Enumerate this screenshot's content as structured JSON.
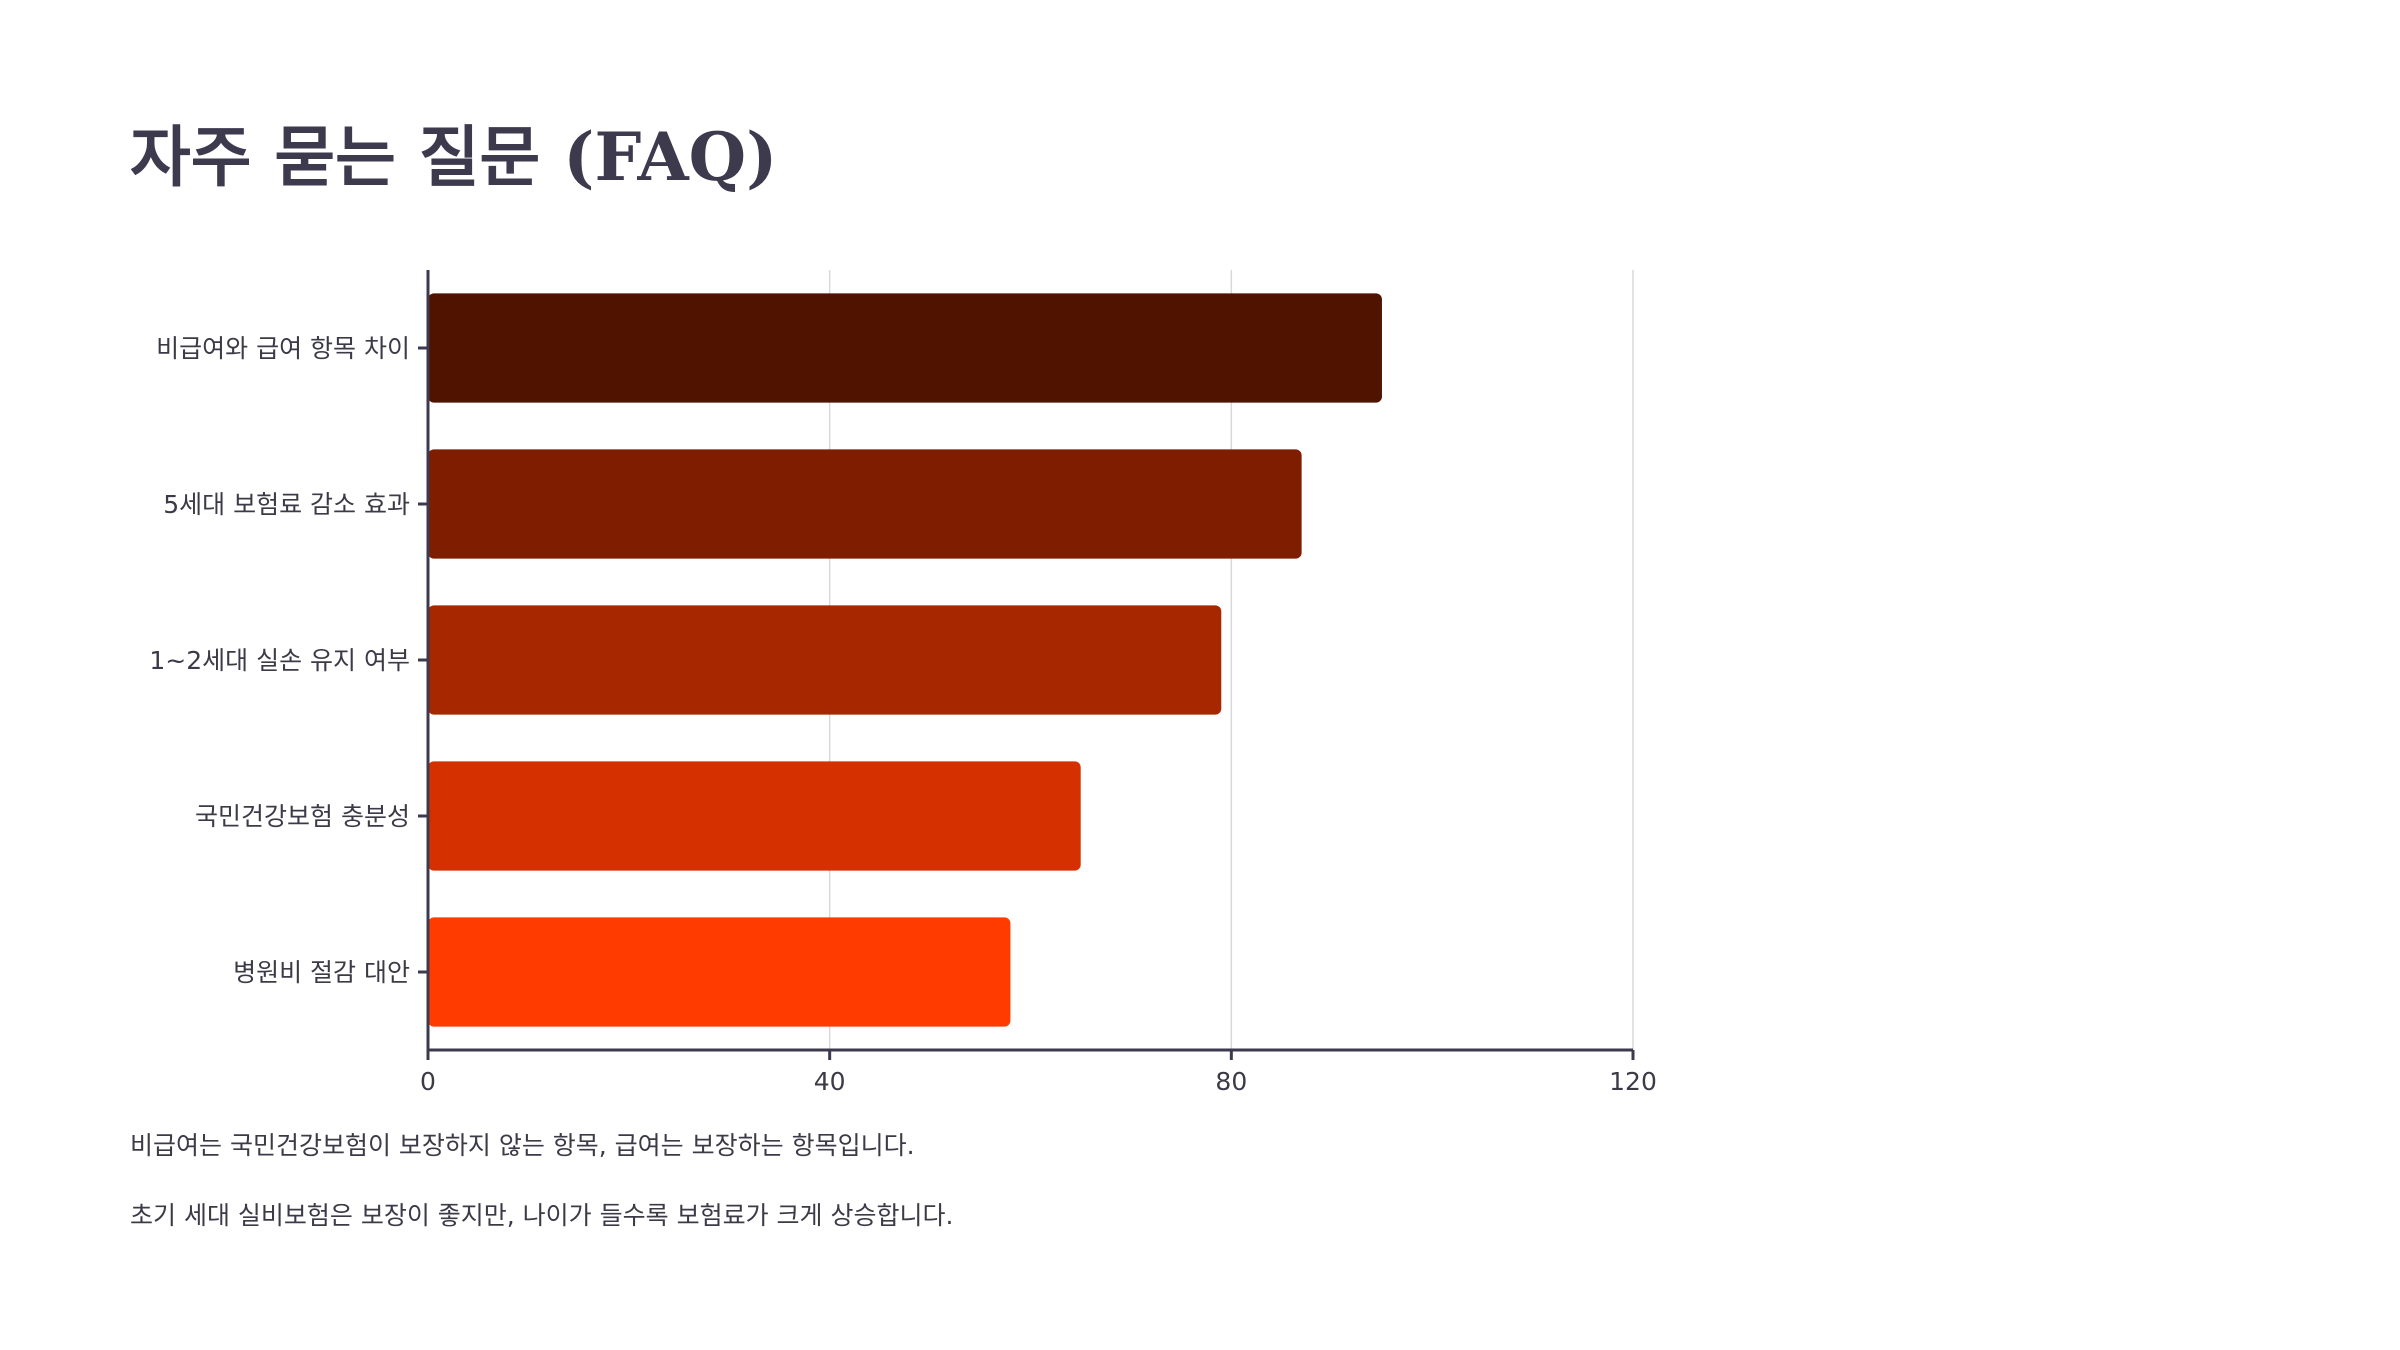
{
  "page": {
    "title": "자주 묻는 질문 (FAQ)"
  },
  "notes": [
    "비급여는 국민건강보험이 보장하지 않는 항목, 급여는 보장하는 항목입니다.",
    "초기 세대 실비보험은 보장이 좋지만, 나이가 들수록 보험료가 크게 상승합니다."
  ],
  "chart_data": {
    "type": "bar",
    "orientation": "horizontal",
    "categories": [
      "비급여와 급여 항목 차이",
      "5세대 보험료 감소 효과",
      "1~2세대 실손 유지 여부",
      "국민건강보험 충분성",
      "병원비 절감 대안"
    ],
    "values": [
      95,
      87,
      79,
      65,
      58
    ],
    "colors": [
      "#4f1300",
      "#7e1d00",
      "#a72800",
      "#d53100",
      "#ff3b00"
    ],
    "xlim": [
      0,
      120
    ],
    "xticks": [
      0,
      40,
      80,
      120
    ],
    "grid": "vertical",
    "legend": "none",
    "title": "",
    "xlabel": "",
    "ylabel": ""
  }
}
